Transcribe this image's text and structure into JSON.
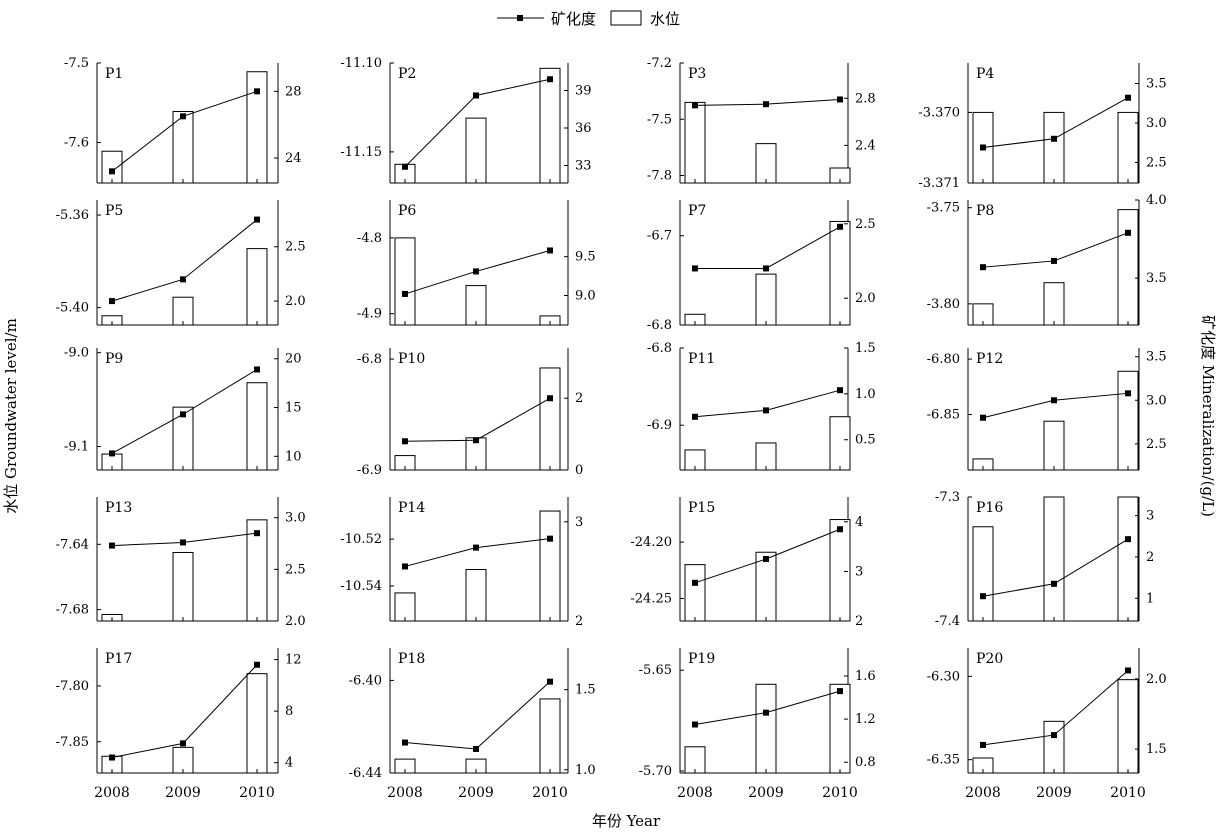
{
  "legend": {
    "line_label": "矿化度",
    "bar_label": "水位",
    "placement": "top-center"
  },
  "axes": {
    "xlabel": "年份  Year",
    "left_label": "水位 Groundwater level/m",
    "right_label": "矿化度 Mineralization/(g/L)",
    "x_ticks": [
      "2008",
      "2009",
      "2010"
    ]
  },
  "chart_data": [
    {
      "type": "bar+line",
      "name": "P1",
      "x": [
        "2008",
        "2009",
        "2010"
      ],
      "bar": {
        "name": "水位",
        "values": [
          -7.611,
          -7.561,
          -7.511
        ],
        "ylim": [
          -7.651,
          -7.5
        ],
        "ticks": [
          -7.5,
          -7.6
        ],
        "tick_labels": [
          "-7.5",
          "-7.6"
        ]
      },
      "line": {
        "name": "矿化度",
        "values": [
          23.2,
          26.5,
          28.0
        ],
        "ylim": [
          22.5,
          29.7
        ],
        "ticks": [
          24,
          28
        ],
        "tick_labels": [
          "24",
          "28"
        ]
      }
    },
    {
      "type": "bar+line",
      "name": "P2",
      "x": [
        "2008",
        "2009",
        "2010"
      ],
      "bar": {
        "name": "水位",
        "values": [
          -11.157,
          -11.131,
          -11.103
        ],
        "ylim": [
          -11.1675,
          -11.1
        ],
        "ticks": [
          -11.1,
          -11.15
        ],
        "tick_labels": [
          "-11.10",
          "-11.15"
        ]
      },
      "line": {
        "name": "矿化度",
        "values": [
          32.9,
          38.6,
          39.9
        ],
        "ylim": [
          31.6,
          41.2
        ],
        "ticks": [
          33,
          36,
          39
        ],
        "tick_labels": [
          "33",
          "36",
          "39"
        ]
      }
    },
    {
      "type": "bar+line",
      "name": "P3",
      "x": [
        "2008",
        "2009",
        "2010"
      ],
      "bar": {
        "name": "水位",
        "values": [
          -7.41,
          -7.63,
          -7.76
        ],
        "ylim": [
          -7.84,
          -7.2
        ],
        "ticks": [
          -7.2,
          -7.5,
          -7.8
        ],
        "tick_labels": [
          "-7.2",
          "-7.5",
          "-7.8"
        ]
      },
      "line": {
        "name": "矿化度",
        "values": [
          2.74,
          2.75,
          2.79
        ],
        "ylim": [
          2.08,
          3.1
        ],
        "ticks": [
          2.4,
          2.8
        ],
        "tick_labels": [
          "2.4",
          "2.8"
        ]
      }
    },
    {
      "type": "bar+line",
      "name": "P4",
      "x": [
        "2008",
        "2009",
        "2010"
      ],
      "bar": {
        "name": "水位",
        "values": [
          -3.37,
          -3.37,
          -3.37
        ],
        "ylim": [
          -3.371,
          -3.3693
        ],
        "ticks": [
          -3.37,
          -3.371
        ],
        "tick_labels": [
          "-3.370",
          "-3.371"
        ]
      },
      "line": {
        "name": "矿化度",
        "values": [
          2.69,
          2.8,
          3.32
        ],
        "ylim": [
          2.24,
          3.76
        ],
        "ticks": [
          2.5,
          3.0,
          3.5
        ],
        "tick_labels": [
          "2.5",
          "3.0",
          "3.5"
        ]
      }
    },
    {
      "type": "bar+line",
      "name": "P5",
      "x": [
        "2008",
        "2009",
        "2010"
      ],
      "bar": {
        "name": "水位",
        "values": [
          -5.4035,
          -5.3955,
          -5.3745
        ],
        "ylim": [
          -5.4075,
          -5.3535
        ],
        "ticks": [
          -5.36,
          -5.4
        ],
        "tick_labels": [
          "-5.36",
          "-5.40"
        ]
      },
      "line": {
        "name": "矿化度",
        "values": [
          2.0,
          2.2,
          2.75
        ],
        "ylim": [
          1.78,
          2.93
        ],
        "ticks": [
          2.0,
          2.5
        ],
        "tick_labels": [
          "2.0",
          "2.5"
        ]
      }
    },
    {
      "type": "bar+line",
      "name": "P6",
      "x": [
        "2008",
        "2009",
        "2010"
      ],
      "bar": {
        "name": "水位",
        "values": [
          -4.8,
          -4.863,
          -4.903
        ],
        "ylim": [
          -4.915,
          -4.75
        ],
        "ticks": [
          -4.8,
          -4.9
        ],
        "tick_labels": [
          "-4.8",
          "-4.9"
        ]
      },
      "line": {
        "name": "矿化度",
        "values": [
          9.02,
          9.31,
          9.58
        ],
        "ylim": [
          8.62,
          10.23
        ],
        "ticks": [
          9.0,
          9.5
        ],
        "tick_labels": [
          "9.0",
          "9.5"
        ]
      }
    },
    {
      "type": "bar+line",
      "name": "P7",
      "x": [
        "2008",
        "2009",
        "2010"
      ],
      "bar": {
        "name": "水位",
        "values": [
          -6.788,
          -6.743,
          -6.684
        ],
        "ylim": [
          -6.8,
          -6.66
        ],
        "ticks": [
          -6.7,
          -6.8
        ],
        "tick_labels": [
          "-6.7",
          "-6.8"
        ]
      },
      "line": {
        "name": "矿化度",
        "values": [
          2.2,
          2.2,
          2.48
        ],
        "ylim": [
          1.82,
          2.66
        ],
        "ticks": [
          2.0,
          2.5
        ],
        "tick_labels": [
          "2.0",
          "2.5"
        ]
      }
    },
    {
      "type": "bar+line",
      "name": "P8",
      "x": [
        "2008",
        "2009",
        "2010"
      ],
      "bar": {
        "name": "水位",
        "values": [
          -3.8,
          -3.789,
          -3.751
        ],
        "ylim": [
          -3.811,
          -3.746
        ],
        "ticks": [
          -3.75,
          -3.8
        ],
        "tick_labels": [
          "-3.75",
          "-3.80"
        ]
      },
      "line": {
        "name": "矿化度",
        "values": [
          3.57,
          3.61,
          3.79
        ],
        "ylim": [
          3.2,
          4.0
        ],
        "ticks": [
          3.5,
          4.0
        ],
        "tick_labels": [
          "3.5",
          "4.0"
        ]
      }
    },
    {
      "type": "bar+line",
      "name": "P9",
      "x": [
        "2008",
        "2009",
        "2010"
      ],
      "bar": {
        "name": "水位",
        "values": [
          -9.108,
          -9.058,
          -9.032
        ],
        "ylim": [
          -9.125,
          -8.995
        ],
        "ticks": [
          -9.0,
          -9.1
        ],
        "tick_labels": [
          "-9.0",
          "-9.1"
        ]
      },
      "line": {
        "name": "矿化度",
        "values": [
          10.3,
          14.3,
          18.9
        ],
        "ylim": [
          8.6,
          21.1
        ],
        "ticks": [
          10,
          15,
          20
        ],
        "tick_labels": [
          "10",
          "15",
          "20"
        ]
      }
    },
    {
      "type": "bar+line",
      "name": "P10",
      "x": [
        "2008",
        "2009",
        "2010"
      ],
      "bar": {
        "name": "水位",
        "values": [
          -6.887,
          -6.871,
          -6.808
        ],
        "ylim": [
          -6.9,
          -6.79
        ],
        "ticks": [
          -6.8,
          -6.9
        ],
        "tick_labels": [
          "-6.8",
          "-6.9"
        ]
      },
      "line": {
        "name": "矿化度",
        "values": [
          0.8,
          0.83,
          2.0
        ],
        "ylim": [
          0,
          3.4
        ],
        "ticks": [
          0,
          2
        ],
        "tick_labels": [
          "0",
          "2"
        ]
      }
    },
    {
      "type": "bar+line",
      "name": "P11",
      "x": [
        "2008",
        "2009",
        "2010"
      ],
      "bar": {
        "name": "水位",
        "values": [
          -6.932,
          -6.923,
          -6.889
        ],
        "ylim": [
          -6.958,
          -6.8
        ],
        "ticks": [
          -6.8,
          -6.9
        ],
        "tick_labels": [
          "-6.8",
          "-6.9"
        ]
      },
      "line": {
        "name": "矿化度",
        "values": [
          0.75,
          0.82,
          1.04
        ],
        "ylim": [
          0.17,
          1.5
        ],
        "ticks": [
          0.5,
          1.0,
          1.5
        ],
        "tick_labels": [
          "0.5",
          "1.0",
          "1.5"
        ]
      }
    },
    {
      "type": "bar+line",
      "name": "P12",
      "x": [
        "2008",
        "2009",
        "2010"
      ],
      "bar": {
        "name": "水位",
        "values": [
          -6.89,
          -6.856,
          -6.811
        ],
        "ylim": [
          -6.9,
          -6.79
        ],
        "ticks": [
          -6.8,
          -6.85
        ],
        "tick_labels": [
          "-6.80",
          "-6.85"
        ]
      },
      "line": {
        "name": "矿化度",
        "values": [
          2.8,
          3.0,
          3.08
        ],
        "ylim": [
          2.2,
          3.6
        ],
        "ticks": [
          2.5,
          3.0,
          3.5
        ],
        "tick_labels": [
          "2.5",
          "3.0",
          "3.5"
        ]
      }
    },
    {
      "type": "bar+line",
      "name": "P13",
      "x": [
        "2008",
        "2009",
        "2010"
      ],
      "bar": {
        "name": "水位",
        "values": [
          -7.683,
          -7.645,
          -7.625
        ],
        "ylim": [
          -7.687,
          -7.611
        ],
        "ticks": [
          -7.64,
          -7.68
        ],
        "tick_labels": [
          "-7.64",
          "-7.68"
        ]
      },
      "line": {
        "name": "矿化度",
        "values": [
          2.73,
          2.76,
          2.85
        ],
        "ylim": [
          2.0,
          3.2
        ],
        "ticks": [
          2.0,
          2.5,
          3.0
        ],
        "tick_labels": [
          "2.0",
          "2.5",
          "3.0"
        ]
      }
    },
    {
      "type": "bar+line",
      "name": "P14",
      "x": [
        "2008",
        "2009",
        "2010"
      ],
      "bar": {
        "name": "水位",
        "values": [
          -10.543,
          -10.533,
          -10.508
        ],
        "ylim": [
          -10.555,
          -10.502
        ],
        "ticks": [
          -10.52,
          -10.54
        ],
        "tick_labels": [
          "-10.52",
          "-10.54"
        ]
      },
      "line": {
        "name": "矿化度",
        "values": [
          2.55,
          2.74,
          2.83
        ],
        "ylim": [
          2.0,
          3.25
        ],
        "ticks": [
          2,
          3
        ],
        "tick_labels": [
          "2",
          "3"
        ]
      }
    },
    {
      "type": "bar+line",
      "name": "P15",
      "x": [
        "2008",
        "2009",
        "2010"
      ],
      "bar": {
        "name": "水位",
        "values": [
          -24.22,
          -24.209,
          -24.18
        ],
        "ylim": [
          -24.27,
          -24.16
        ],
        "ticks": [
          -24.2,
          -24.25
        ],
        "tick_labels": [
          "-24.20",
          "-24.25"
        ]
      },
      "line": {
        "name": "矿化度",
        "values": [
          2.77,
          3.25,
          3.85
        ],
        "ylim": [
          2.0,
          4.5
        ],
        "ticks": [
          2,
          3,
          4
        ],
        "tick_labels": [
          "2",
          "3",
          "4"
        ]
      }
    },
    {
      "type": "bar+line",
      "name": "P16",
      "x": [
        "2008",
        "2009",
        "2010"
      ],
      "bar": {
        "name": "水位",
        "values": [
          -7.324,
          -7.3,
          -7.3
        ],
        "ylim": [
          -7.4,
          -7.3
        ],
        "ticks": [
          -7.3,
          -7.4
        ],
        "tick_labels": [
          "-7.3",
          "-7.4"
        ]
      },
      "line": {
        "name": "矿化度",
        "values": [
          1.05,
          1.35,
          2.43
        ],
        "ylim": [
          0.45,
          3.45
        ],
        "ticks": [
          1,
          2,
          3
        ],
        "tick_labels": [
          "1",
          "2",
          "3"
        ]
      }
    },
    {
      "type": "bar+line",
      "name": "P17",
      "x": [
        "2008",
        "2009",
        "2010"
      ],
      "bar": {
        "name": "水位",
        "values": [
          -7.863,
          -7.855,
          -7.789
        ],
        "ylim": [
          -7.878,
          -7.766
        ],
        "ticks": [
          -7.8,
          -7.85
        ],
        "tick_labels": [
          "-7.80",
          "-7.85"
        ]
      },
      "line": {
        "name": "矿化度",
        "values": [
          4.4,
          5.5,
          11.6
        ],
        "ylim": [
          3.2,
          12.9
        ],
        "ticks": [
          4,
          8,
          12
        ],
        "tick_labels": [
          "4",
          "8",
          "12"
        ]
      }
    },
    {
      "type": "bar+line",
      "name": "P18",
      "x": [
        "2008",
        "2009",
        "2010"
      ],
      "bar": {
        "name": "水位",
        "values": [
          -6.434,
          -6.434,
          -6.408
        ],
        "ylim": [
          -6.44,
          -6.386
        ],
        "ticks": [
          -6.4,
          -6.44
        ],
        "tick_labels": [
          "-6.40",
          "-6.44"
        ]
      },
      "line": {
        "name": "矿化度",
        "values": [
          1.17,
          1.13,
          1.55
        ],
        "ylim": [
          0.98,
          1.76
        ],
        "ticks": [
          1.0,
          1.5
        ],
        "tick_labels": [
          "1.0",
          "1.5"
        ]
      }
    },
    {
      "type": "bar+line",
      "name": "P19",
      "x": [
        "2008",
        "2009",
        "2010"
      ],
      "bar": {
        "name": "水位",
        "values": [
          -5.688,
          -5.657,
          -5.657
        ],
        "ylim": [
          -5.701,
          -5.639
        ],
        "ticks": [
          -5.65,
          -5.7
        ],
        "tick_labels": [
          "-5.65",
          "-5.70"
        ]
      },
      "line": {
        "name": "矿化度",
        "values": [
          1.15,
          1.26,
          1.46
        ],
        "ylim": [
          0.7,
          1.86
        ],
        "ticks": [
          0.8,
          1.2,
          1.6
        ],
        "tick_labels": [
          "0.8",
          "1.2",
          "1.6"
        ]
      }
    },
    {
      "type": "bar+line",
      "name": "P20",
      "x": [
        "2008",
        "2009",
        "2010"
      ],
      "bar": {
        "name": "水位",
        "values": [
          -6.349,
          -6.327,
          -6.302
        ],
        "ylim": [
          -6.358,
          -6.283
        ],
        "ticks": [
          -6.3,
          -6.35
        ],
        "tick_labels": [
          "-6.30",
          "-6.35"
        ]
      },
      "line": {
        "name": "矿化度",
        "values": [
          1.53,
          1.6,
          2.06
        ],
        "ylim": [
          1.33,
          2.22
        ],
        "ticks": [
          1.5,
          2.0
        ],
        "tick_labels": [
          "1.5",
          "2.0"
        ]
      }
    }
  ]
}
